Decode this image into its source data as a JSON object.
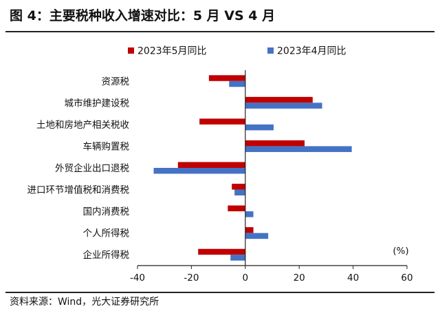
{
  "figure": {
    "title": "图 4：主要税种收入增速对比：5 月  VS 4 月",
    "source": "资料来源：Wind，光大证券研究所"
  },
  "chart_data": {
    "type": "bar",
    "orientation": "horizontal",
    "categories": [
      "资源税",
      "城市维护建设税",
      "土地和房地产相关税收",
      "车辆购置税",
      "外贸企业出口退税",
      "进口环节增值税和消费税",
      "国内消费税",
      "个人所得税",
      "企业所得税"
    ],
    "series": [
      {
        "name": "2023年5月同比",
        "color": "#c00000",
        "values": [
          -13.5,
          25,
          -17,
          22,
          -25,
          -5,
          -6.5,
          3,
          -17.5
        ]
      },
      {
        "name": "2023年4月同比",
        "color": "#4472c4",
        "values": [
          -6,
          28.5,
          10.5,
          39.5,
          -34,
          -4,
          3,
          8.5,
          -5.5
        ]
      }
    ],
    "xlim": [
      -40,
      60
    ],
    "xticks": [
      -40,
      -20,
      0,
      20,
      40,
      60
    ],
    "unit_label": "(%)",
    "legend_position": "top",
    "grid": false
  }
}
